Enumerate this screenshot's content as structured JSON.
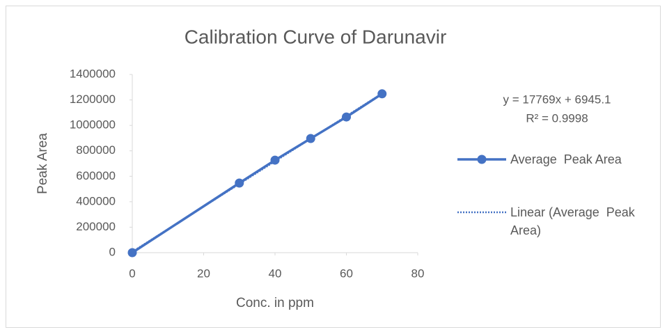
{
  "chart_data": {
    "type": "scatter-line",
    "title": "Calibration Curve of Darunavir",
    "x_label": "Conc. in ppm",
    "y_label": "Peak Area",
    "xlim": [
      0,
      80
    ],
    "xticks": [
      0,
      20,
      40,
      60,
      80
    ],
    "ylim": [
      0,
      1400000
    ],
    "yticks": [
      0,
      200000,
      400000,
      600000,
      800000,
      1000000,
      1200000,
      1400000
    ],
    "grid": false,
    "legend_position": "right",
    "series": [
      {
        "name": "Average  Peak Area",
        "color": "#4472c4",
        "line_style": "solid",
        "marker": true,
        "x": [
          0,
          30,
          40,
          50,
          60,
          70
        ],
        "values": [
          0,
          547000,
          727000,
          897000,
          1066000,
          1248000
        ]
      },
      {
        "name": "Linear (Average  Peak Area)",
        "color": "#4472c4",
        "line_style": "dotted",
        "marker": false,
        "x": [
          0,
          70
        ],
        "values": [
          6945,
          1250775
        ]
      }
    ],
    "annotations": [
      "y = 17769x + 6945.1",
      "R² = 0.9998"
    ]
  }
}
